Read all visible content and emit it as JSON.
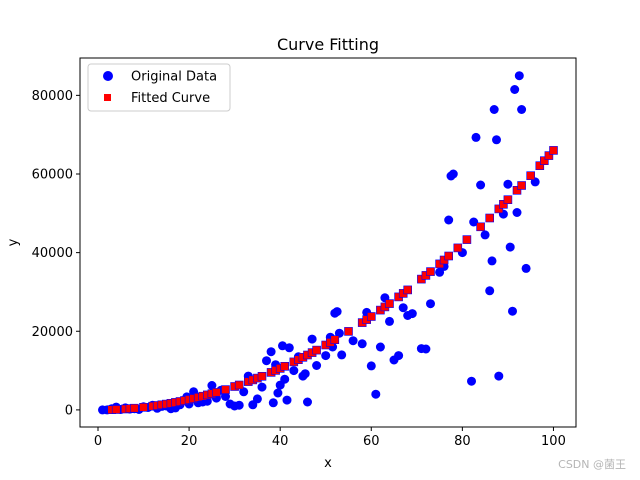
{
  "chart_data": {
    "type": "scatter",
    "title": "Curve Fitting",
    "xlabel": "x",
    "ylabel": "y",
    "xlim": [
      -3.95,
      104.95
    ],
    "ylim": [
      -4350,
      89500
    ],
    "xticks": [
      0,
      20,
      40,
      60,
      80,
      100
    ],
    "xtick_labels": [
      "0",
      "20",
      "40",
      "60",
      "80",
      "100"
    ],
    "yticks": [
      0,
      20000,
      40000,
      60000,
      80000
    ],
    "ytick_labels": [
      "0",
      "20000",
      "40000",
      "60000",
      "80000"
    ],
    "grid": false,
    "legend_position": "top-left",
    "series": [
      {
        "name": "Original Data",
        "marker": "circle",
        "color": "#0000ff",
        "points": [
          [
            1,
            0
          ],
          [
            2,
            0
          ],
          [
            3,
            300
          ],
          [
            4,
            700
          ],
          [
            5,
            100
          ],
          [
            6,
            500
          ],
          [
            7,
            200
          ],
          [
            8,
            300
          ],
          [
            9,
            100
          ],
          [
            10,
            800
          ],
          [
            11,
            600
          ],
          [
            12,
            1200
          ],
          [
            13,
            400
          ],
          [
            14,
            900
          ],
          [
            15,
            1000
          ],
          [
            16,
            300
          ],
          [
            17,
            500
          ],
          [
            18,
            1300
          ],
          [
            19,
            2500
          ],
          [
            19.5,
            3300
          ],
          [
            20,
            1500
          ],
          [
            21,
            4600
          ],
          [
            22,
            1800
          ],
          [
            23,
            2000
          ],
          [
            24,
            2200
          ],
          [
            25,
            6200
          ],
          [
            26,
            3000
          ],
          [
            27,
            5000
          ],
          [
            28,
            3400
          ],
          [
            29,
            1500
          ],
          [
            30,
            1000
          ],
          [
            31,
            1200
          ],
          [
            32,
            4600
          ],
          [
            33,
            8600
          ],
          [
            34,
            1300
          ],
          [
            35,
            2800
          ],
          [
            36,
            5800
          ],
          [
            37,
            12500
          ],
          [
            38,
            14800
          ],
          [
            38.5,
            1800
          ],
          [
            39,
            11500
          ],
          [
            39.5,
            4300
          ],
          [
            40,
            6300
          ],
          [
            40.5,
            16300
          ],
          [
            41,
            7800
          ],
          [
            41.5,
            2500
          ],
          [
            42,
            15800
          ],
          [
            43,
            10000
          ],
          [
            44,
            13500
          ],
          [
            45,
            8600
          ],
          [
            45.5,
            9200
          ],
          [
            46,
            2000
          ],
          [
            47,
            18000
          ],
          [
            48,
            11300
          ],
          [
            50,
            13800
          ],
          [
            51,
            18500
          ],
          [
            51.5,
            16000
          ],
          [
            52,
            24600
          ],
          [
            52.5,
            25000
          ],
          [
            53,
            19500
          ],
          [
            53.5,
            14000
          ],
          [
            56,
            17600
          ],
          [
            58,
            16800
          ],
          [
            59,
            24800
          ],
          [
            60,
            11200
          ],
          [
            61,
            4000
          ],
          [
            62,
            16000
          ],
          [
            63,
            28500
          ],
          [
            64,
            22500
          ],
          [
            65,
            12700
          ],
          [
            66,
            13800
          ],
          [
            67,
            26000
          ],
          [
            68,
            24000
          ],
          [
            69,
            24500
          ],
          [
            71,
            15600
          ],
          [
            72,
            15500
          ],
          [
            73,
            27000
          ],
          [
            75,
            35000
          ],
          [
            76,
            36500
          ],
          [
            77,
            48300
          ],
          [
            77.5,
            59500
          ],
          [
            78,
            60000
          ],
          [
            80,
            40000
          ],
          [
            82,
            7300
          ],
          [
            82.5,
            47800
          ],
          [
            83,
            69300
          ],
          [
            84,
            57200
          ],
          [
            85,
            44500
          ],
          [
            86,
            30300
          ],
          [
            86.5,
            37900
          ],
          [
            87,
            76400
          ],
          [
            87.5,
            68700
          ],
          [
            88,
            8600
          ],
          [
            89,
            49800
          ],
          [
            90,
            57400
          ],
          [
            90.5,
            41400
          ],
          [
            91,
            25100
          ],
          [
            91.5,
            81500
          ],
          [
            92,
            50200
          ],
          [
            92.5,
            85000
          ],
          [
            93,
            76400
          ],
          [
            94,
            36000
          ],
          [
            96,
            58000
          ]
        ]
      },
      {
        "name": "Fitted Curve",
        "marker": "square",
        "color": "#ff0000",
        "edgecolor": "#0000ff",
        "x": [
          3,
          4,
          6,
          7,
          8,
          10,
          12,
          13,
          14,
          15,
          16,
          17,
          18,
          19,
          20,
          21,
          22,
          23,
          24,
          25,
          26,
          28,
          30,
          31,
          33,
          34,
          35,
          36,
          38,
          39,
          40,
          41,
          43,
          44,
          45,
          46,
          47,
          48,
          50,
          51,
          52,
          55,
          58,
          59,
          60,
          62,
          63,
          64,
          66,
          67,
          68,
          71,
          72,
          73,
          75,
          76,
          77,
          79,
          81,
          84,
          86,
          88,
          89,
          90,
          92,
          93,
          95,
          97,
          98,
          99,
          100
        ]
      }
    ]
  },
  "watermark": "CSDN @菌王"
}
